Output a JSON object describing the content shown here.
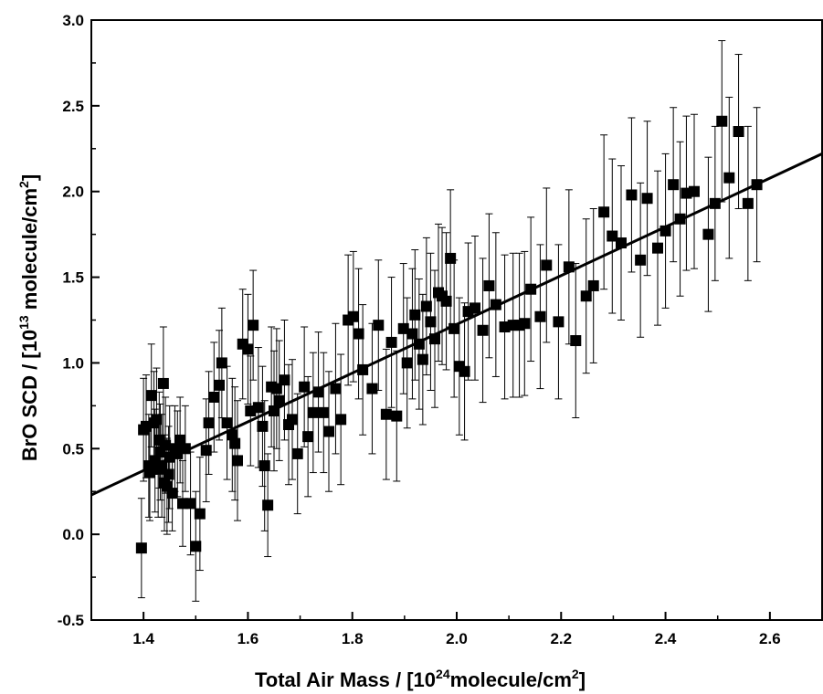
{
  "chart_data": {
    "type": "scatter",
    "xlabel": {
      "pre": "Total Air Mass / [10",
      "sup": "24",
      "post": "molecule/cm",
      "sup2": "2",
      "close": "]"
    },
    "ylabel": {
      "pre": "BrO SCD / [10",
      "sup": "13",
      "post": " molecule/cm",
      "sup2": "2",
      "close": "]"
    },
    "xlim": [
      1.3,
      2.7
    ],
    "ylim": [
      -0.5,
      3.0
    ],
    "x_ticks": [
      "1.4",
      "1.6",
      "1.8",
      "2.0",
      "2.2",
      "2.4",
      "2.6"
    ],
    "x_tick_values": [
      1.4,
      1.6,
      1.8,
      2.0,
      2.2,
      2.4,
      2.6
    ],
    "y_ticks": [
      "-0.5",
      "0.0",
      "0.5",
      "1.0",
      "1.5",
      "2.0",
      "2.5",
      "3.0"
    ],
    "y_tick_values": [
      -0.5,
      0.0,
      0.5,
      1.0,
      1.5,
      2.0,
      2.5,
      3.0
    ],
    "grid": false,
    "marker": "square",
    "color": "#000000",
    "fit_line": {
      "x": [
        1.3,
        2.7
      ],
      "y": [
        0.23,
        2.22
      ]
    },
    "points": [
      [
        1.396,
        -0.08,
        0.29
      ],
      [
        1.4,
        0.61,
        0.3
      ],
      [
        1.405,
        0.63,
        0.3
      ],
      [
        1.41,
        0.4,
        0.3
      ],
      [
        1.412,
        0.36,
        0.28
      ],
      [
        1.415,
        0.81,
        0.3
      ],
      [
        1.42,
        0.65,
        0.3
      ],
      [
        1.422,
        0.43,
        0.3
      ],
      [
        1.425,
        0.67,
        0.3
      ],
      [
        1.428,
        0.38,
        0.28
      ],
      [
        1.43,
        0.55,
        0.28
      ],
      [
        1.432,
        0.48,
        0.28
      ],
      [
        1.435,
        0.4,
        0.3
      ],
      [
        1.438,
        0.88,
        0.33
      ],
      [
        1.44,
        0.3,
        0.28
      ],
      [
        1.442,
        0.52,
        0.28
      ],
      [
        1.445,
        0.28,
        0.28
      ],
      [
        1.448,
        0.35,
        0.28
      ],
      [
        1.45,
        0.45,
        0.3
      ],
      [
        1.455,
        0.24,
        0.22
      ],
      [
        1.46,
        0.5,
        0.25
      ],
      [
        1.465,
        0.47,
        0.25
      ],
      [
        1.47,
        0.55,
        0.25
      ],
      [
        1.475,
        0.18,
        0.25
      ],
      [
        1.48,
        0.5,
        0.25
      ],
      [
        1.49,
        0.18,
        0.3
      ],
      [
        1.5,
        -0.07,
        0.32
      ],
      [
        1.508,
        0.12,
        0.33
      ],
      [
        1.52,
        0.49,
        0.3
      ],
      [
        1.525,
        0.65,
        0.3
      ],
      [
        1.535,
        0.8,
        0.32
      ],
      [
        1.545,
        0.87,
        0.32
      ],
      [
        1.55,
        1.0,
        0.32
      ],
      [
        1.56,
        0.65,
        0.33
      ],
      [
        1.57,
        0.58,
        0.33
      ],
      [
        1.575,
        0.53,
        0.33
      ],
      [
        1.58,
        0.43,
        0.35
      ],
      [
        1.59,
        1.11,
        0.32
      ],
      [
        1.6,
        1.08,
        0.32
      ],
      [
        1.605,
        0.72,
        0.32
      ],
      [
        1.61,
        1.22,
        0.32
      ],
      [
        1.62,
        0.74,
        0.35
      ],
      [
        1.628,
        0.63,
        0.35
      ],
      [
        1.632,
        0.4,
        0.38
      ],
      [
        1.638,
        0.17,
        0.3
      ],
      [
        1.645,
        0.86,
        0.35
      ],
      [
        1.65,
        0.72,
        0.35
      ],
      [
        1.655,
        0.85,
        0.35
      ],
      [
        1.66,
        0.78,
        0.35
      ],
      [
        1.67,
        0.9,
        0.35
      ],
      [
        1.678,
        0.64,
        0.35
      ],
      [
        1.685,
        0.67,
        0.35
      ],
      [
        1.695,
        0.47,
        0.35
      ],
      [
        1.708,
        0.86,
        0.35
      ],
      [
        1.715,
        0.57,
        0.35
      ],
      [
        1.725,
        0.71,
        0.35
      ],
      [
        1.735,
        0.83,
        0.35
      ],
      [
        1.745,
        0.71,
        0.35
      ],
      [
        1.755,
        0.6,
        0.35
      ],
      [
        1.768,
        0.85,
        0.38
      ],
      [
        1.778,
        0.67,
        0.38
      ],
      [
        1.792,
        1.25,
        0.38
      ],
      [
        1.802,
        1.27,
        0.38
      ],
      [
        1.812,
        1.17,
        0.38
      ],
      [
        1.82,
        0.96,
        0.38
      ],
      [
        1.838,
        0.85,
        0.38
      ],
      [
        1.85,
        1.22,
        0.38
      ],
      [
        1.865,
        0.7,
        0.38
      ],
      [
        1.875,
        1.12,
        0.38
      ],
      [
        1.885,
        0.69,
        0.38
      ],
      [
        1.898,
        1.2,
        0.38
      ],
      [
        1.905,
        1.0,
        0.38
      ],
      [
        1.915,
        1.17,
        0.38
      ],
      [
        1.92,
        1.28,
        0.38
      ],
      [
        1.928,
        1.11,
        0.38
      ],
      [
        1.935,
        1.02,
        0.38
      ],
      [
        1.942,
        1.33,
        0.4
      ],
      [
        1.95,
        1.24,
        0.4
      ],
      [
        1.958,
        1.14,
        0.4
      ],
      [
        1.965,
        1.41,
        0.4
      ],
      [
        1.972,
        1.39,
        0.4
      ],
      [
        1.98,
        1.36,
        0.4
      ],
      [
        1.988,
        1.61,
        0.4
      ],
      [
        1.995,
        1.2,
        0.4
      ],
      [
        2.005,
        0.98,
        0.4
      ],
      [
        2.015,
        0.95,
        0.4
      ],
      [
        2.022,
        1.3,
        0.4
      ],
      [
        2.035,
        1.32,
        0.42
      ],
      [
        2.05,
        1.19,
        0.42
      ],
      [
        2.062,
        1.45,
        0.42
      ],
      [
        2.075,
        1.34,
        0.42
      ],
      [
        2.092,
        1.21,
        0.42
      ],
      [
        2.108,
        1.22,
        0.42
      ],
      [
        2.12,
        1.22,
        0.42
      ],
      [
        2.13,
        1.23,
        0.42
      ],
      [
        2.142,
        1.43,
        0.42
      ],
      [
        2.16,
        1.27,
        0.42
      ],
      [
        2.172,
        1.57,
        0.45
      ],
      [
        2.195,
        1.24,
        0.45
      ],
      [
        2.215,
        1.56,
        0.45
      ],
      [
        2.228,
        1.13,
        0.45
      ],
      [
        2.248,
        1.39,
        0.45
      ],
      [
        2.262,
        1.45,
        0.45
      ],
      [
        2.282,
        1.88,
        0.45
      ],
      [
        2.298,
        1.74,
        0.45
      ],
      [
        2.315,
        1.7,
        0.45
      ],
      [
        2.335,
        1.98,
        0.45
      ],
      [
        2.352,
        1.6,
        0.45
      ],
      [
        2.365,
        1.96,
        0.45
      ],
      [
        2.385,
        1.67,
        0.45
      ],
      [
        2.4,
        1.77,
        0.45
      ],
      [
        2.415,
        2.04,
        0.45
      ],
      [
        2.428,
        1.84,
        0.45
      ],
      [
        2.44,
        1.99,
        0.45
      ],
      [
        2.455,
        2.0,
        0.45
      ],
      [
        2.482,
        1.75,
        0.45
      ],
      [
        2.495,
        1.93,
        0.45
      ],
      [
        2.508,
        2.41,
        0.47
      ],
      [
        2.522,
        2.08,
        0.47
      ],
      [
        2.54,
        2.35,
        0.45
      ],
      [
        2.558,
        1.93,
        0.45
      ],
      [
        2.575,
        2.04,
        0.45
      ]
    ]
  }
}
